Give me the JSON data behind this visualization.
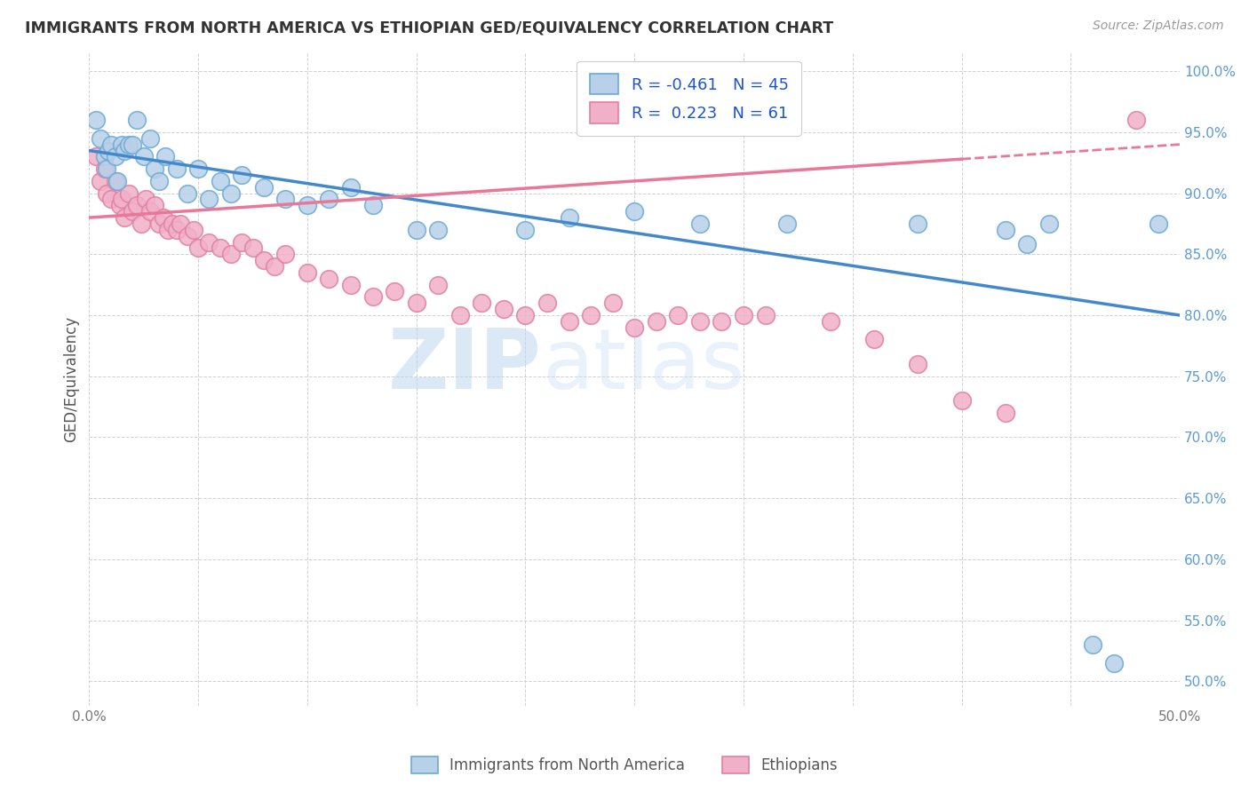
{
  "title": "IMMIGRANTS FROM NORTH AMERICA VS ETHIOPIAN GED/EQUIVALENCY CORRELATION CHART",
  "source": "Source: ZipAtlas.com",
  "ylabel": "GED/Equivalency",
  "xlim": [
    0.0,
    0.5
  ],
  "ylim": [
    0.48,
    1.015
  ],
  "ytick_positions": [
    0.5,
    0.55,
    0.6,
    0.65,
    0.7,
    0.75,
    0.8,
    0.85,
    0.9,
    0.95,
    1.0
  ],
  "ytick_labels": [
    "50.0%",
    "55.0%",
    "60.0%",
    "65.0%",
    "70.0%",
    "75.0%",
    "80.0%",
    "85.0%",
    "90.0%",
    "95.0%",
    "100.0%"
  ],
  "xtick_positions": [
    0.0,
    0.05,
    0.1,
    0.15,
    0.2,
    0.25,
    0.3,
    0.35,
    0.4,
    0.45,
    0.5
  ],
  "xtick_labels": [
    "0.0%",
    "",
    "",
    "",
    "",
    "",
    "",
    "",
    "",
    "",
    "50.0%"
  ],
  "blue_face": "#b8d0e8",
  "blue_edge": "#6aaad4",
  "pink_face": "#f0b0c8",
  "pink_edge": "#e080a0",
  "blue_line_color": "#4488cc",
  "pink_line_color": "#e87898",
  "R_blue": -0.461,
  "N_blue": 45,
  "R_pink": 0.223,
  "N_pink": 61,
  "legend_label_blue": "Immigrants from North America",
  "legend_label_pink": "Ethiopians",
  "watermark": "ZIPatlas",
  "bg_color": "#ffffff",
  "grid_color": "#cccccc",
  "tick_color": "#5b9bd5",
  "blue_scatter_x": [
    0.003,
    0.005,
    0.007,
    0.008,
    0.009,
    0.01,
    0.012,
    0.013,
    0.015,
    0.016,
    0.018,
    0.02,
    0.022,
    0.025,
    0.028,
    0.03,
    0.032,
    0.035,
    0.04,
    0.045,
    0.05,
    0.055,
    0.06,
    0.065,
    0.07,
    0.08,
    0.09,
    0.1,
    0.11,
    0.12,
    0.13,
    0.15,
    0.16,
    0.2,
    0.22,
    0.25,
    0.28,
    0.32,
    0.38,
    0.42,
    0.43,
    0.44,
    0.46,
    0.47,
    0.49
  ],
  "blue_scatter_y": [
    0.96,
    0.945,
    0.93,
    0.92,
    0.935,
    0.94,
    0.93,
    0.91,
    0.94,
    0.935,
    0.94,
    0.94,
    0.96,
    0.93,
    0.945,
    0.92,
    0.91,
    0.93,
    0.92,
    0.9,
    0.92,
    0.895,
    0.91,
    0.9,
    0.915,
    0.905,
    0.895,
    0.89,
    0.895,
    0.905,
    0.89,
    0.87,
    0.87,
    0.87,
    0.88,
    0.885,
    0.875,
    0.875,
    0.875,
    0.87,
    0.858,
    0.875,
    0.53,
    0.515,
    0.875
  ],
  "pink_scatter_x": [
    0.003,
    0.005,
    0.007,
    0.008,
    0.01,
    0.012,
    0.014,
    0.015,
    0.016,
    0.018,
    0.02,
    0.022,
    0.024,
    0.026,
    0.028,
    0.03,
    0.032,
    0.034,
    0.036,
    0.038,
    0.04,
    0.042,
    0.045,
    0.048,
    0.05,
    0.055,
    0.06,
    0.065,
    0.07,
    0.075,
    0.08,
    0.085,
    0.09,
    0.1,
    0.11,
    0.12,
    0.13,
    0.14,
    0.15,
    0.16,
    0.17,
    0.18,
    0.19,
    0.2,
    0.21,
    0.22,
    0.23,
    0.24,
    0.25,
    0.26,
    0.27,
    0.28,
    0.29,
    0.3,
    0.31,
    0.34,
    0.36,
    0.38,
    0.4,
    0.42,
    0.48
  ],
  "pink_scatter_y": [
    0.93,
    0.91,
    0.92,
    0.9,
    0.895,
    0.91,
    0.89,
    0.895,
    0.88,
    0.9,
    0.885,
    0.89,
    0.875,
    0.895,
    0.885,
    0.89,
    0.875,
    0.88,
    0.87,
    0.875,
    0.87,
    0.875,
    0.865,
    0.87,
    0.855,
    0.86,
    0.855,
    0.85,
    0.86,
    0.855,
    0.845,
    0.84,
    0.85,
    0.835,
    0.83,
    0.825,
    0.815,
    0.82,
    0.81,
    0.825,
    0.8,
    0.81,
    0.805,
    0.8,
    0.81,
    0.795,
    0.8,
    0.81,
    0.79,
    0.795,
    0.8,
    0.795,
    0.795,
    0.8,
    0.8,
    0.795,
    0.78,
    0.76,
    0.73,
    0.72,
    0.96
  ],
  "blue_line_x0": 0.0,
  "blue_line_x1": 0.5,
  "blue_line_y0": 0.935,
  "blue_line_y1": 0.8,
  "pink_line_x0": 0.0,
  "pink_line_x1": 0.5,
  "pink_line_y0": 0.88,
  "pink_line_y1": 0.94
}
